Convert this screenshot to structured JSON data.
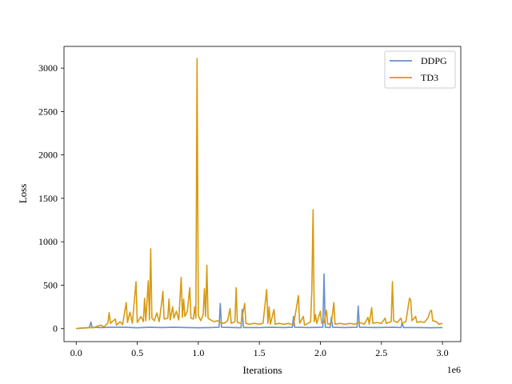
{
  "chart_data": {
    "type": "line",
    "xlabel": "Iterations",
    "ylabel": "Loss",
    "x_offset_label": "1e6",
    "xlim": [
      -0.1,
      3.15
    ],
    "ylim": [
      -150,
      3250
    ],
    "x_ticks": [
      0.0,
      0.5,
      1.0,
      1.5,
      2.0,
      2.5,
      3.0
    ],
    "x_tick_labels": [
      "0.0",
      "0.5",
      "1.0",
      "1.5",
      "2.0",
      "2.5",
      "3.0"
    ],
    "y_ticks": [
      0,
      500,
      1000,
      1500,
      2000,
      2500,
      3000
    ],
    "y_tick_labels": [
      "0",
      "500",
      "1000",
      "1500",
      "2000",
      "2500",
      "3000"
    ],
    "legend_position": "top-right",
    "grid": false,
    "series": [
      {
        "name": "DDPG",
        "color": "#6a8fc8",
        "points": [
          [
            0.0,
            0
          ],
          [
            0.05,
            5
          ],
          [
            0.1,
            10
          ],
          [
            0.11,
            20
          ],
          [
            0.12,
            75
          ],
          [
            0.13,
            15
          ],
          [
            0.2,
            12
          ],
          [
            0.3,
            15
          ],
          [
            0.4,
            15
          ],
          [
            0.5,
            10
          ],
          [
            0.6,
            15
          ],
          [
            0.7,
            12
          ],
          [
            0.8,
            15
          ],
          [
            0.9,
            12
          ],
          [
            1.0,
            10
          ],
          [
            1.1,
            12
          ],
          [
            1.17,
            15
          ],
          [
            1.18,
            290
          ],
          [
            1.19,
            15
          ],
          [
            1.3,
            12
          ],
          [
            1.35,
            10
          ],
          [
            1.36,
            220
          ],
          [
            1.37,
            12
          ],
          [
            1.5,
            12
          ],
          [
            1.6,
            15
          ],
          [
            1.7,
            12
          ],
          [
            1.77,
            15
          ],
          [
            1.78,
            140
          ],
          [
            1.79,
            15
          ],
          [
            1.9,
            12
          ],
          [
            2.02,
            15
          ],
          [
            2.03,
            630
          ],
          [
            2.04,
            15
          ],
          [
            2.08,
            12
          ],
          [
            2.09,
            130
          ],
          [
            2.1,
            15
          ],
          [
            2.2,
            12
          ],
          [
            2.3,
            15
          ],
          [
            2.31,
            260
          ],
          [
            2.32,
            15
          ],
          [
            2.45,
            12
          ],
          [
            2.6,
            15
          ],
          [
            2.66,
            12
          ],
          [
            2.67,
            70
          ],
          [
            2.68,
            12
          ],
          [
            2.8,
            12
          ],
          [
            2.9,
            10
          ],
          [
            3.0,
            12
          ]
        ]
      },
      {
        "name": "TD3",
        "color": "#d89a0f",
        "points": [
          [
            0.0,
            0
          ],
          [
            0.03,
            5
          ],
          [
            0.06,
            8
          ],
          [
            0.1,
            12
          ],
          [
            0.14,
            10
          ],
          [
            0.18,
            30
          ],
          [
            0.2,
            40
          ],
          [
            0.23,
            20
          ],
          [
            0.25,
            50
          ],
          [
            0.26,
            70
          ],
          [
            0.27,
            185
          ],
          [
            0.28,
            60
          ],
          [
            0.32,
            110
          ],
          [
            0.33,
            40
          ],
          [
            0.36,
            80
          ],
          [
            0.38,
            45
          ],
          [
            0.41,
            300
          ],
          [
            0.42,
            70
          ],
          [
            0.44,
            190
          ],
          [
            0.46,
            60
          ],
          [
            0.49,
            540
          ],
          [
            0.5,
            70
          ],
          [
            0.53,
            140
          ],
          [
            0.55,
            80
          ],
          [
            0.56,
            350
          ],
          [
            0.57,
            90
          ],
          [
            0.59,
            550
          ],
          [
            0.6,
            100
          ],
          [
            0.61,
            920
          ],
          [
            0.62,
            120
          ],
          [
            0.64,
            90
          ],
          [
            0.66,
            180
          ],
          [
            0.68,
            80
          ],
          [
            0.7,
            300
          ],
          [
            0.71,
            430
          ],
          [
            0.72,
            110
          ],
          [
            0.75,
            120
          ],
          [
            0.76,
            340
          ],
          [
            0.77,
            100
          ],
          [
            0.79,
            250
          ],
          [
            0.8,
            120
          ],
          [
            0.82,
            200
          ],
          [
            0.84,
            100
          ],
          [
            0.86,
            590
          ],
          [
            0.87,
            130
          ],
          [
            0.88,
            340
          ],
          [
            0.89,
            140
          ],
          [
            0.91,
            200
          ],
          [
            0.93,
            470
          ],
          [
            0.94,
            120
          ],
          [
            0.96,
            110
          ],
          [
            0.97,
            250
          ],
          [
            0.98,
            120
          ],
          [
            0.99,
            3110
          ],
          [
            1.0,
            150
          ],
          [
            1.02,
            90
          ],
          [
            1.04,
            160
          ],
          [
            1.05,
            460
          ],
          [
            1.06,
            140
          ],
          [
            1.07,
            730
          ],
          [
            1.08,
            120
          ],
          [
            1.1,
            100
          ],
          [
            1.13,
            80
          ],
          [
            1.16,
            90
          ],
          [
            1.18,
            70
          ],
          [
            1.21,
            60
          ],
          [
            1.24,
            90
          ],
          [
            1.26,
            230
          ],
          [
            1.27,
            60
          ],
          [
            1.3,
            80
          ],
          [
            1.31,
            470
          ],
          [
            1.32,
            70
          ],
          [
            1.35,
            60
          ],
          [
            1.38,
            290
          ],
          [
            1.39,
            60
          ],
          [
            1.42,
            50
          ],
          [
            1.46,
            60
          ],
          [
            1.5,
            50
          ],
          [
            1.53,
            60
          ],
          [
            1.56,
            450
          ],
          [
            1.57,
            60
          ],
          [
            1.58,
            250
          ],
          [
            1.59,
            50
          ],
          [
            1.62,
            220
          ],
          [
            1.63,
            50
          ],
          [
            1.66,
            60
          ],
          [
            1.7,
            50
          ],
          [
            1.74,
            60
          ],
          [
            1.78,
            40
          ],
          [
            1.82,
            380
          ],
          [
            1.83,
            60
          ],
          [
            1.86,
            140
          ],
          [
            1.87,
            40
          ],
          [
            1.9,
            60
          ],
          [
            1.92,
            80
          ],
          [
            1.93,
            460
          ],
          [
            1.94,
            1370
          ],
          [
            1.95,
            80
          ],
          [
            1.96,
            160
          ],
          [
            1.97,
            60
          ],
          [
            2.0,
            200
          ],
          [
            2.01,
            60
          ],
          [
            2.03,
            70
          ],
          [
            2.05,
            210
          ],
          [
            2.06,
            50
          ],
          [
            2.09,
            60
          ],
          [
            2.11,
            300
          ],
          [
            2.12,
            50
          ],
          [
            2.16,
            60
          ],
          [
            2.2,
            50
          ],
          [
            2.24,
            60
          ],
          [
            2.28,
            50
          ],
          [
            2.32,
            70
          ],
          [
            2.36,
            50
          ],
          [
            2.39,
            130
          ],
          [
            2.4,
            50
          ],
          [
            2.42,
            240
          ],
          [
            2.43,
            60
          ],
          [
            2.46,
            70
          ],
          [
            2.5,
            60
          ],
          [
            2.53,
            120
          ],
          [
            2.54,
            60
          ],
          [
            2.58,
            80
          ],
          [
            2.59,
            540
          ],
          [
            2.6,
            90
          ],
          [
            2.63,
            70
          ],
          [
            2.66,
            120
          ],
          [
            2.67,
            60
          ],
          [
            2.7,
            80
          ],
          [
            2.73,
            350
          ],
          [
            2.74,
            330
          ],
          [
            2.75,
            90
          ],
          [
            2.78,
            140
          ],
          [
            2.79,
            70
          ],
          [
            2.82,
            80
          ],
          [
            2.85,
            70
          ],
          [
            2.88,
            120
          ],
          [
            2.9,
            200
          ],
          [
            2.91,
            210
          ],
          [
            2.92,
            90
          ],
          [
            2.95,
            80
          ],
          [
            2.97,
            50
          ],
          [
            3.0,
            60
          ]
        ]
      }
    ]
  }
}
